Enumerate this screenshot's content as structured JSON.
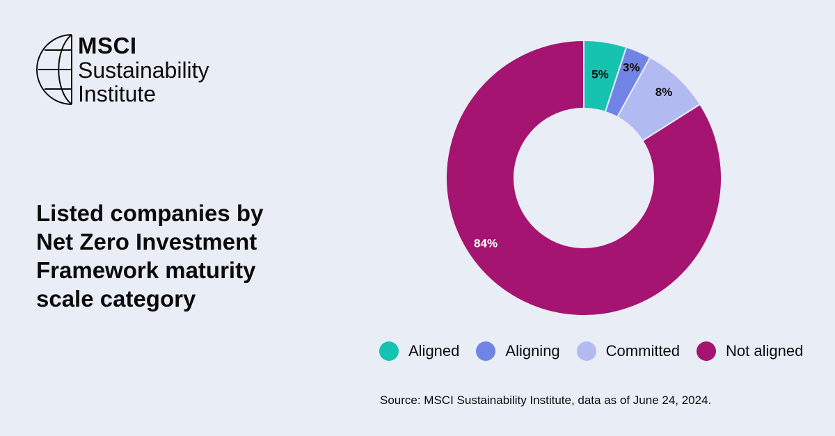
{
  "logo": {
    "brand": "MSCI",
    "line1": "Sustainability",
    "line2": "Institute",
    "icon": "globe-icon"
  },
  "title_lines": [
    "Listed companies by",
    "Net Zero Investment",
    "Framework maturity",
    "scale category"
  ],
  "source": "Source: MSCI Sustainability Institute, data as of June 24, 2024.",
  "chart_data": {
    "type": "pie",
    "donut": true,
    "categories": [
      "Aligned",
      "Aligning",
      "Committed",
      "Not aligned"
    ],
    "values": [
      5,
      3,
      8,
      84
    ],
    "labels": [
      "5%",
      "3%",
      "8%",
      "84%"
    ],
    "colors": [
      "#16c3b1",
      "#7084e6",
      "#b1bbf1",
      "#a51470"
    ],
    "label_colors": [
      "#0b0b0b",
      "#0b0b0b",
      "#0b0b0b",
      "#ffffff"
    ],
    "legend_position": "bottom",
    "start_angle": "top",
    "direction": "clockwise"
  }
}
